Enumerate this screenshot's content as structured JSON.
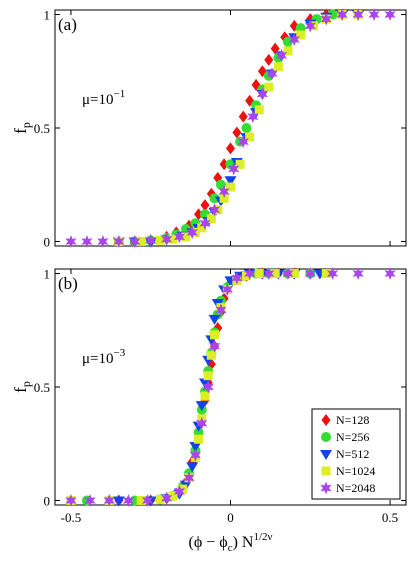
{
  "chart_data": [
    {
      "type": "scatter",
      "panel_label": "(a)",
      "annotation": "μ=10",
      "annotation_exp": "−1",
      "ylabel": "f",
      "ylabel_sub": "p",
      "xlabel": "",
      "xlim": [
        -0.55,
        0.55
      ],
      "ylim": [
        -0.02,
        1.02
      ],
      "yticks": [
        "0",
        "0.5",
        "1"
      ],
      "xticks": [],
      "grid": false,
      "legend": null,
      "series": [
        {
          "name": "N=128",
          "color": "#ee1111",
          "marker": "diamond",
          "x": [
            -0.3,
            -0.25,
            -0.2,
            -0.17,
            -0.13,
            -0.1,
            -0.08,
            -0.06,
            -0.04,
            -0.02,
            0.0,
            0.02,
            0.04,
            0.06,
            0.08,
            0.1,
            0.12,
            0.14,
            0.17,
            0.2,
            0.25,
            0.3
          ],
          "y": [
            0.0,
            0.005,
            0.02,
            0.04,
            0.07,
            0.12,
            0.16,
            0.21,
            0.28,
            0.34,
            0.41,
            0.48,
            0.55,
            0.62,
            0.69,
            0.75,
            0.8,
            0.85,
            0.9,
            0.95,
            0.98,
            1.0
          ]
        },
        {
          "name": "N=256",
          "color": "#33dd33",
          "marker": "circle",
          "x": [
            -0.35,
            -0.3,
            -0.25,
            -0.2,
            -0.17,
            -0.14,
            -0.11,
            -0.08,
            -0.05,
            -0.03,
            0.0,
            0.03,
            0.05,
            0.08,
            0.1,
            0.12,
            0.15,
            0.18,
            0.22,
            0.27,
            0.32
          ],
          "y": [
            0.0,
            0.0,
            0.005,
            0.015,
            0.03,
            0.055,
            0.08,
            0.12,
            0.19,
            0.25,
            0.34,
            0.44,
            0.5,
            0.6,
            0.67,
            0.73,
            0.81,
            0.88,
            0.94,
            0.98,
            1.0
          ]
        },
        {
          "name": "N=512",
          "color": "#1144ee",
          "marker": "triangle-down",
          "x": [
            -0.35,
            -0.3,
            -0.25,
            -0.2,
            -0.15,
            -0.12,
            -0.1,
            -0.07,
            -0.05,
            -0.03,
            0.0,
            0.02,
            0.05,
            0.08,
            0.1,
            0.13,
            0.16,
            0.2,
            0.25,
            0.3,
            0.35,
            0.4
          ],
          "y": [
            0.0,
            0.0,
            0.0,
            0.01,
            0.025,
            0.04,
            0.06,
            0.09,
            0.13,
            0.18,
            0.27,
            0.35,
            0.46,
            0.57,
            0.65,
            0.74,
            0.82,
            0.9,
            0.96,
            0.99,
            1.0,
            1.0
          ]
        },
        {
          "name": "N=1024",
          "color": "#ddee22",
          "marker": "square",
          "x": [
            -0.35,
            -0.28,
            -0.22,
            -0.18,
            -0.14,
            -0.11,
            -0.09,
            -0.06,
            -0.04,
            -0.02,
            0.0,
            0.03,
            0.06,
            0.09,
            0.12,
            0.15,
            0.18,
            0.22,
            0.26,
            0.3,
            0.35,
            0.4
          ],
          "y": [
            0.0,
            0.0,
            0.005,
            0.01,
            0.02,
            0.04,
            0.06,
            0.1,
            0.14,
            0.19,
            0.24,
            0.34,
            0.46,
            0.58,
            0.68,
            0.77,
            0.84,
            0.91,
            0.95,
            0.98,
            1.0,
            1.0
          ]
        },
        {
          "name": "N=2048",
          "color": "#aa44ee",
          "marker": "star",
          "x": [
            -0.5,
            -0.45,
            -0.4,
            -0.35,
            -0.3,
            -0.25,
            -0.2,
            -0.16,
            -0.12,
            -0.08,
            -0.05,
            -0.02,
            0.01,
            0.04,
            0.07,
            0.1,
            0.13,
            0.16,
            0.2,
            0.25,
            0.3,
            0.35,
            0.4,
            0.45,
            0.5
          ],
          "y": [
            0.0,
            0.0,
            0.0,
            0.0,
            0.0,
            0.005,
            0.01,
            0.02,
            0.04,
            0.08,
            0.14,
            0.22,
            0.32,
            0.44,
            0.55,
            0.65,
            0.74,
            0.82,
            0.89,
            0.95,
            0.98,
            1.0,
            1.0,
            1.0,
            1.0
          ]
        }
      ]
    },
    {
      "type": "scatter",
      "panel_label": "(b)",
      "annotation": "μ=10",
      "annotation_exp": "−3",
      "ylabel": "f",
      "ylabel_sub": "p",
      "xlabel": "(ϕ − ϕ",
      "xlabel_sub": "c",
      "xlabel_tail": ") N",
      "xlabel_sup": "1/2ν",
      "xlim": [
        -0.55,
        0.55
      ],
      "ylim": [
        -0.02,
        1.02
      ],
      "yticks": [
        "0",
        "0.5",
        "1"
      ],
      "xticks": [
        "-0.5",
        "0",
        "0.5"
      ],
      "grid": false,
      "legend": "bottom-right",
      "series": [
        {
          "name": "N=128",
          "color": "#ee1111",
          "marker": "diamond",
          "x": [
            -0.35,
            -0.25,
            -0.2,
            -0.17,
            -0.14,
            -0.12,
            -0.1,
            -0.09,
            -0.08,
            -0.07,
            -0.06,
            -0.05,
            -0.04,
            -0.03,
            -0.02,
            -0.01,
            0.0,
            0.02,
            0.05,
            0.1,
            0.15,
            0.2,
            0.25
          ],
          "y": [
            0.0,
            0.0,
            0.01,
            0.03,
            0.08,
            0.17,
            0.27,
            0.35,
            0.44,
            0.52,
            0.6,
            0.68,
            0.76,
            0.83,
            0.89,
            0.93,
            0.96,
            0.98,
            0.99,
            1.0,
            1.0,
            1.0,
            1.0
          ]
        },
        {
          "name": "N=256",
          "color": "#33dd33",
          "marker": "circle",
          "x": [
            -0.45,
            -0.3,
            -0.22,
            -0.18,
            -0.15,
            -0.13,
            -0.11,
            -0.1,
            -0.09,
            -0.08,
            -0.07,
            -0.06,
            -0.05,
            -0.04,
            -0.03,
            -0.01,
            0.01,
            0.04,
            0.08,
            0.12,
            0.18,
            0.25
          ],
          "y": [
            0.0,
            0.0,
            0.005,
            0.02,
            0.06,
            0.12,
            0.22,
            0.3,
            0.4,
            0.48,
            0.57,
            0.65,
            0.74,
            0.82,
            0.88,
            0.94,
            0.97,
            0.99,
            1.0,
            1.0,
            1.0,
            1.0
          ]
        },
        {
          "name": "N=512",
          "color": "#1144ee",
          "marker": "triangle-down",
          "x": [
            -0.35,
            -0.25,
            -0.2,
            -0.16,
            -0.14,
            -0.12,
            -0.11,
            -0.1,
            -0.09,
            -0.08,
            -0.07,
            -0.06,
            -0.05,
            -0.04,
            -0.02,
            0.0,
            0.03,
            0.06,
            0.1,
            0.15,
            0.2,
            0.28
          ],
          "y": [
            0.0,
            0.0,
            0.01,
            0.03,
            0.07,
            0.15,
            0.24,
            0.33,
            0.42,
            0.52,
            0.62,
            0.71,
            0.8,
            0.87,
            0.93,
            0.97,
            0.99,
            1.0,
            1.0,
            1.0,
            1.0,
            1.0
          ]
        },
        {
          "name": "N=1024",
          "color": "#ddee22",
          "marker": "square",
          "x": [
            -0.5,
            -0.38,
            -0.28,
            -0.22,
            -0.18,
            -0.15,
            -0.13,
            -0.11,
            -0.1,
            -0.09,
            -0.08,
            -0.07,
            -0.06,
            -0.05,
            -0.03,
            -0.01,
            0.02,
            0.05,
            0.09,
            0.14,
            0.2,
            0.3
          ],
          "y": [
            0.0,
            0.0,
            0.0,
            0.005,
            0.02,
            0.05,
            0.1,
            0.19,
            0.27,
            0.36,
            0.46,
            0.55,
            0.64,
            0.73,
            0.85,
            0.93,
            0.97,
            0.99,
            1.0,
            1.0,
            1.0,
            1.0
          ]
        },
        {
          "name": "N=2048",
          "color": "#aa44ee",
          "marker": "star",
          "x": [
            -0.5,
            -0.44,
            -0.38,
            -0.32,
            -0.26,
            -0.2,
            -0.16,
            -0.13,
            -0.11,
            -0.09,
            -0.07,
            -0.05,
            -0.03,
            -0.01,
            0.02,
            0.06,
            0.12,
            0.18,
            0.25,
            0.32,
            0.4,
            0.5
          ],
          "y": [
            0.0,
            0.0,
            0.0,
            0.0,
            0.0,
            0.01,
            0.04,
            0.1,
            0.2,
            0.34,
            0.5,
            0.68,
            0.84,
            0.93,
            0.98,
            1.0,
            1.0,
            1.0,
            1.0,
            1.0,
            1.0,
            1.0
          ]
        }
      ]
    }
  ]
}
